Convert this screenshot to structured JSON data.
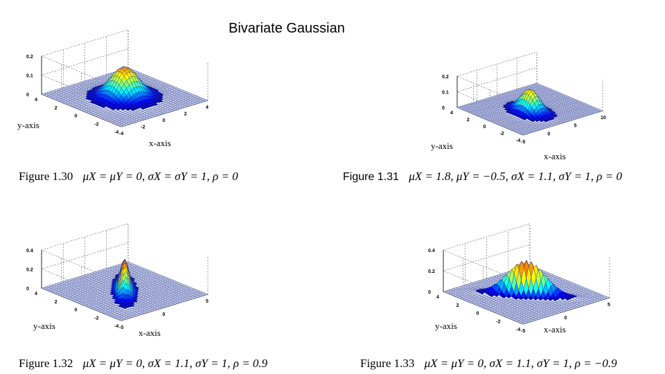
{
  "title": "Bivariate Gaussian",
  "figures": [
    {
      "figure_label": "Figure 1.30",
      "equation": "μX = μY = 0,  σX = σY = 1,  ρ = 0",
      "params": {
        "mu_x": 0,
        "mu_y": 0,
        "sigma_x": 1,
        "sigma_y": 1,
        "rho": 0
      },
      "x_axis_label": "x-axis",
      "y_axis_label": "y-axis",
      "z_ticks": [
        "0.2",
        "0.1",
        "0"
      ],
      "x_ticks": [
        "-4",
        "-2",
        "0",
        "2",
        "4"
      ],
      "y_ticks": [
        "4",
        "2",
        "0",
        "-2",
        "-4"
      ]
    },
    {
      "figure_label": "Figure 1.31",
      "equation": "μX = 1.8,  μY = −0.5,  σX = 1.1,  σY = 1,  ρ = 0",
      "params": {
        "mu_x": 1.8,
        "mu_y": -0.5,
        "sigma_x": 1.1,
        "sigma_y": 1,
        "rho": 0
      },
      "x_axis_label": "x-axis",
      "y_axis_label": "y-axis",
      "z_ticks": [
        "0.2",
        "0.1",
        "0"
      ],
      "x_ticks": [
        "-5",
        "0",
        "5",
        "10"
      ],
      "y_ticks": [
        "4",
        "2",
        "0",
        "-2",
        "-4"
      ]
    },
    {
      "figure_label": "Figure 1.32",
      "equation": "μX = μY = 0,  σX = 1.1,  σY = 1,  ρ = 0.9",
      "params": {
        "mu_x": 0,
        "mu_y": 0,
        "sigma_x": 1.1,
        "sigma_y": 1,
        "rho": 0.9
      },
      "x_axis_label": "x-axis",
      "y_axis_label": "y-axis",
      "z_ticks": [
        "0.4",
        "0.2",
        "0"
      ],
      "x_ticks": [
        "-5",
        "0",
        "5"
      ],
      "y_ticks": [
        "4",
        "2",
        "0",
        "-2",
        "-4"
      ]
    },
    {
      "figure_label": "Figure 1.33",
      "equation": "μX = μY = 0,  σX = 1.1,  σY = 1,  ρ = −0.9",
      "params": {
        "mu_x": 0,
        "mu_y": 0,
        "sigma_x": 1.1,
        "sigma_y": 1,
        "rho": -0.9
      },
      "x_axis_label": "x-axis",
      "y_axis_label": "y-axis",
      "z_ticks": [
        "0.4",
        "0.2",
        "0"
      ],
      "x_ticks": [
        "-5",
        "0",
        "5"
      ],
      "y_ticks": [
        "4",
        "2",
        "0",
        "-2",
        "-4"
      ]
    }
  ]
}
